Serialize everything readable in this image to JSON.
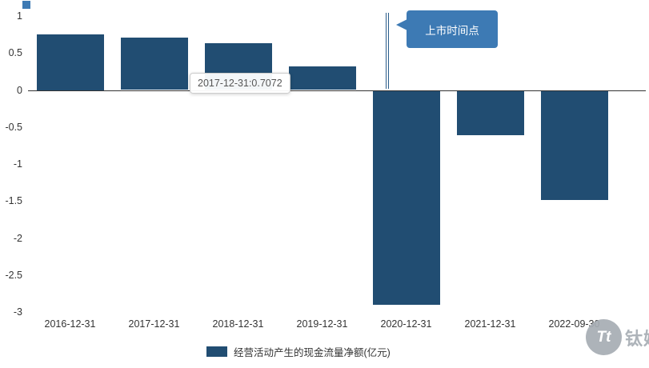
{
  "chart_data": {
    "type": "bar",
    "title": "",
    "categories": [
      "2016-12-31",
      "2017-12-31",
      "2018-12-31",
      "2019-12-31",
      "2020-12-31",
      "2021-12-31",
      "2022-09-30"
    ],
    "values": [
      0.75,
      0.7072,
      0.63,
      0.32,
      -2.9,
      -0.61,
      -1.49
    ],
    "series_name": "经营活动产生的现金流量净额(亿元)",
    "xlabel": "",
    "ylabel": "",
    "ylim": [
      -3,
      1
    ],
    "y_ticks": [
      1,
      0.5,
      0,
      -0.5,
      -1,
      -1.5,
      -2,
      -2.5,
      -3
    ],
    "bar_color": "#214d72",
    "grid": false,
    "legend_position": "bottom"
  },
  "tooltip": {
    "text": "2017-12-31:0.7072"
  },
  "annotation": {
    "label": "上市时间点",
    "color": "#3d7ab4"
  },
  "legend": {
    "label": "经营活动产生的现金流量净额(亿元)",
    "swatch_color": "#214d72"
  },
  "watermark": {
    "logo_text": "Tt",
    "brand": "钛媒体"
  }
}
